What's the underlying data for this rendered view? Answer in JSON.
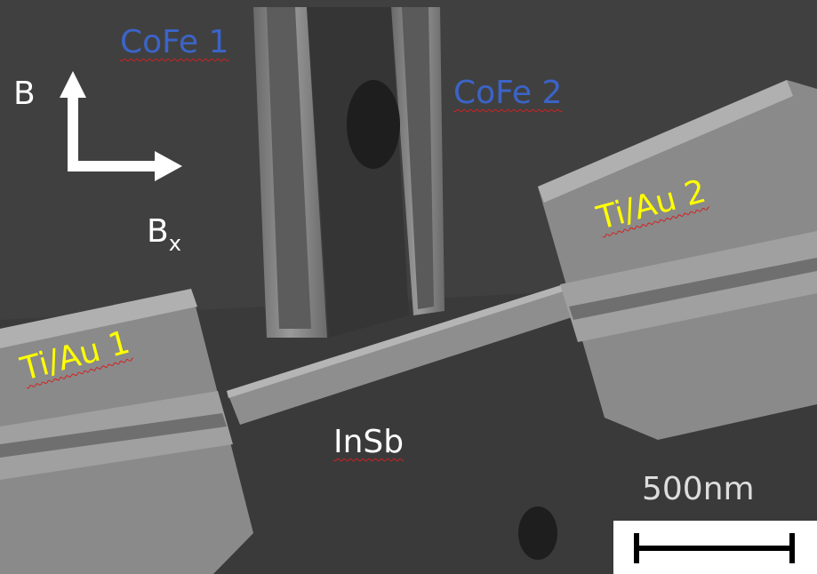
{
  "image": {
    "description_labels": {
      "cofe_1": "CoFe 1",
      "cofe_2": "CoFe 2",
      "tiau_1": "Ti/Au 1",
      "tiau_2": "Ti/Au 2",
      "insb": "InSb",
      "b_axis": "B",
      "bx_main": "B",
      "bx_sub": "x",
      "scale": "500nm"
    },
    "colors": {
      "cofe_label": "#3b64c8",
      "tiau_label": "#ffff00",
      "white_label": "#ffffff",
      "background": "#3c3c3c",
      "contact": "#8a8a8a",
      "scalebar": "#000000"
    }
  }
}
